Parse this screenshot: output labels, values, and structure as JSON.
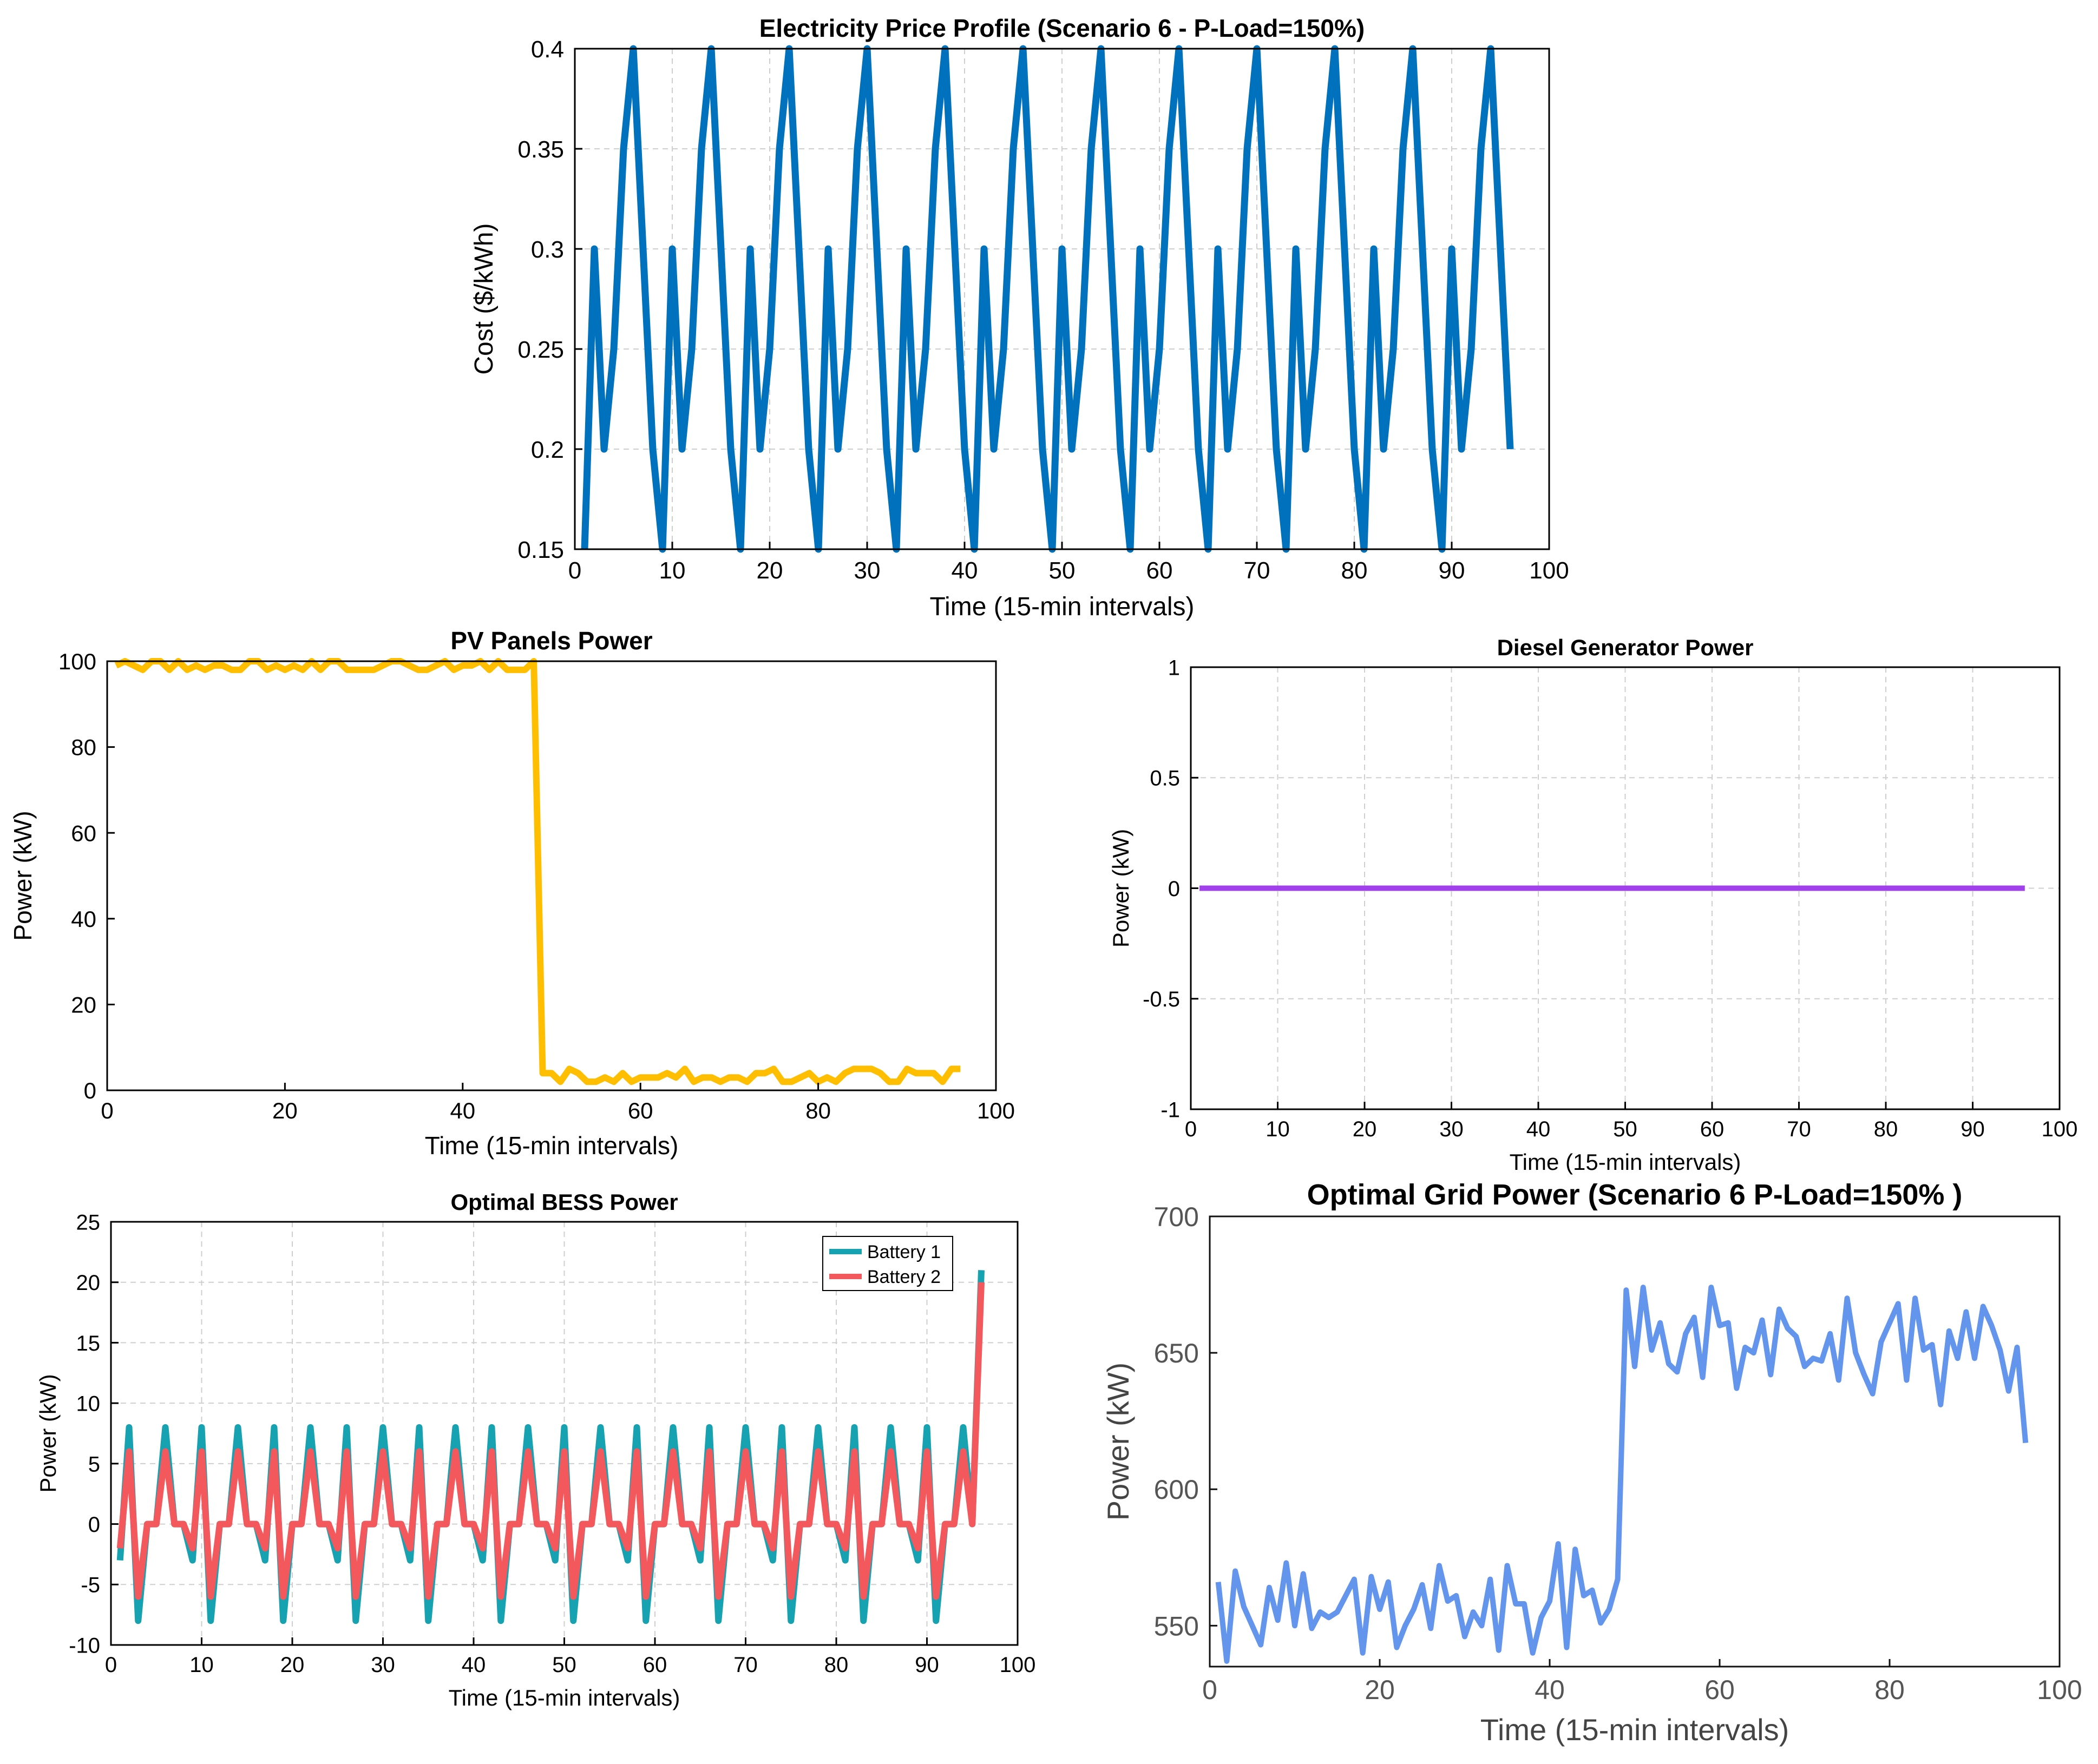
{
  "chart_data": [
    {
      "id": "price",
      "type": "line",
      "title": "Electricity Price Profile (Scenario 6 - P-Load=150%)",
      "xlabel": "Time (15-min intervals)",
      "ylabel": "Cost ($/kWh)",
      "xlim": [
        0,
        100
      ],
      "ylim": [
        0.15,
        0.4
      ],
      "xticks": [
        0,
        10,
        20,
        30,
        40,
        50,
        60,
        70,
        80,
        90,
        100
      ],
      "yticks": [
        0.15,
        0.2,
        0.25,
        0.3,
        0.35,
        0.4
      ],
      "ytick_labels": [
        "0.15",
        "0.2",
        "0.25",
        "0.3",
        "0.35",
        "0.4"
      ],
      "grid": true,
      "legend": "none",
      "pattern_x_start": 1,
      "pattern_period_values": [
        0.15,
        0.3,
        0.2,
        0.25,
        0.35,
        0.4,
        0.3,
        0.2
      ],
      "series": [
        {
          "color": "#0072BD",
          "x": [
            1,
            96
          ]
        }
      ]
    },
    {
      "id": "pv",
      "type": "line",
      "title": "PV Panels Power",
      "xlabel": "Time (15-min intervals)",
      "ylabel": "Power (kW)",
      "xlim": [
        0,
        100
      ],
      "ylim": [
        0,
        100
      ],
      "xticks": [
        0,
        20,
        40,
        60,
        80,
        100
      ],
      "yticks": [
        0,
        20,
        40,
        60,
        80,
        100
      ],
      "grid": false,
      "legend": "none",
      "series": [
        {
          "color": "#FFBF00",
          "x_start": 1,
          "values": [
            99,
            100,
            99,
            98,
            100,
            100,
            98,
            100,
            98,
            99,
            98,
            99,
            99,
            98,
            98,
            100,
            100,
            98,
            99,
            98,
            99,
            98,
            100,
            98,
            100,
            100,
            98,
            98,
            98,
            98,
            99,
            100,
            100,
            99,
            98,
            98,
            99,
            100,
            98,
            99,
            99,
            100,
            98,
            100,
            98,
            98,
            98,
            100,
            4,
            4,
            2,
            5,
            4,
            2,
            2,
            3,
            2,
            4,
            2,
            3,
            3,
            3,
            4,
            3,
            5,
            2,
            3,
            3,
            2,
            3,
            3,
            2,
            4,
            4,
            5,
            2,
            2,
            3,
            4,
            2,
            3,
            2,
            4,
            5,
            5,
            5,
            4,
            2,
            2,
            5,
            4,
            4,
            4,
            2,
            5,
            5
          ]
        }
      ]
    },
    {
      "id": "diesel",
      "type": "line",
      "title": "Diesel Generator Power",
      "xlabel": "Time (15-min intervals)",
      "ylabel": "Power (kW)",
      "xlim": [
        0,
        100
      ],
      "ylim": [
        -1,
        1
      ],
      "xticks": [
        0,
        10,
        20,
        30,
        40,
        50,
        60,
        70,
        80,
        90,
        100
      ],
      "yticks": [
        -1,
        -0.5,
        0,
        0.5,
        1
      ],
      "grid": true,
      "legend": "none",
      "series": [
        {
          "color": "#A141EB",
          "x": [
            1,
            96
          ],
          "values": [
            0,
            0
          ]
        }
      ]
    },
    {
      "id": "bess",
      "type": "line",
      "title": "Optimal BESS Power",
      "xlabel": "Time (15-min intervals)",
      "ylabel": "Power (kW)",
      "xlim": [
        0,
        100
      ],
      "ylim": [
        -10,
        25
      ],
      "xticks": [
        0,
        10,
        20,
        30,
        40,
        50,
        60,
        70,
        80,
        90,
        100
      ],
      "yticks": [
        -10,
        -5,
        0,
        5,
        10,
        15,
        20,
        25
      ],
      "grid": true,
      "legend": "top-right",
      "pattern_x_start": 1,
      "pattern_length": 95,
      "series": [
        {
          "name": "Battery 1",
          "color": "#17A2B1",
          "pattern": [
            -3,
            8,
            -8,
            0,
            0,
            8,
            0,
            0
          ],
          "final_x": 96,
          "final_value": 21
        },
        {
          "name": "Battery 2",
          "color": "#F2585C",
          "pattern": [
            -2,
            6,
            -6,
            0,
            0,
            6,
            0,
            0
          ],
          "final_x": 96,
          "final_value": 20
        }
      ]
    },
    {
      "id": "grid",
      "type": "line",
      "title": "Optimal Grid Power (Scenario 6 P-Load=150%  )",
      "xlabel": "Time (15-min intervals)",
      "ylabel": "Power (kW)",
      "xlim": [
        0,
        100
      ],
      "ylim": [
        535,
        700
      ],
      "xticks": [
        0,
        20,
        40,
        60,
        80,
        100
      ],
      "yticks": [
        550,
        600,
        650,
        700
      ],
      "grid": false,
      "legend": "none",
      "series": [
        {
          "color": "#6495ED",
          "x_start": 1,
          "values": [
            566,
            537,
            570,
            557,
            550,
            543,
            564,
            552,
            573,
            550,
            569,
            549,
            555,
            553,
            555,
            561,
            567,
            540,
            568,
            556,
            566,
            542,
            550,
            556,
            565,
            549,
            572,
            559,
            561,
            546,
            555,
            550,
            567,
            541,
            572,
            558,
            558,
            540,
            553,
            559,
            580,
            542,
            578,
            561,
            563,
            551,
            556,
            567,
            673,
            645,
            674,
            651,
            661,
            646,
            643,
            657,
            663,
            641,
            674,
            660,
            661,
            637,
            652,
            650,
            662,
            642,
            666,
            659,
            656,
            645,
            648,
            647,
            657,
            640,
            670,
            650,
            642,
            635,
            654,
            661,
            668,
            640,
            670,
            651,
            653,
            631,
            658,
            648,
            665,
            648,
            667,
            660,
            651,
            636,
            652,
            617
          ]
        }
      ]
    }
  ]
}
